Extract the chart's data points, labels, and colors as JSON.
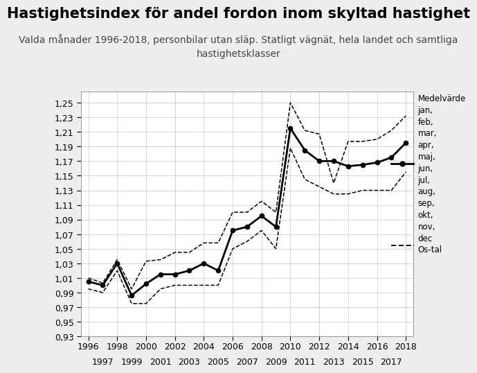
{
  "title": "Hastighetsindex för andel fordon inom skyltad hastighet",
  "subtitle": "Valda månader 1996-2018, personbilar utan släp. Statligt vägnät, hela landet och samtliga\nhastighetsklasser",
  "background_color": "#eeeeee",
  "plot_bg_color": "#ffffff",
  "main_line": {
    "x": [
      1996,
      1997,
      1998,
      1999,
      2000,
      2001,
      2002,
      2003,
      2004,
      2005,
      2006,
      2007,
      2008,
      2009,
      2010,
      2011,
      2012,
      2013,
      2014,
      2015,
      2016,
      2017,
      2018
    ],
    "y": [
      1.005,
      1.0,
      1.03,
      0.986,
      1.002,
      1.015,
      1.015,
      1.02,
      1.03,
      1.02,
      1.075,
      1.08,
      1.095,
      1.08,
      1.215,
      1.185,
      1.17,
      1.17,
      1.163,
      1.165,
      1.168,
      1.175,
      1.195
    ]
  },
  "upper_dashed": {
    "x": [
      1996,
      1997,
      1998,
      1999,
      2000,
      2001,
      2002,
      2003,
      2004,
      2005,
      2006,
      2007,
      2008,
      2009,
      2010,
      2011,
      2012,
      2013,
      2014,
      2015,
      2016,
      2017,
      2018
    ],
    "y": [
      1.01,
      1.003,
      1.035,
      0.995,
      1.033,
      1.035,
      1.045,
      1.045,
      1.058,
      1.058,
      1.1,
      1.1,
      1.115,
      1.1,
      1.25,
      1.212,
      1.207,
      1.14,
      1.197,
      1.197,
      1.2,
      1.212,
      1.232
    ]
  },
  "lower_dashed": {
    "x": [
      1996,
      1997,
      1998,
      1999,
      2000,
      2001,
      2002,
      2003,
      2004,
      2005,
      2006,
      2007,
      2008,
      2009,
      2010,
      2011,
      2012,
      2013,
      2014,
      2015,
      2016,
      2017,
      2018
    ],
    "y": [
      0.995,
      0.99,
      1.02,
      0.975,
      0.975,
      0.995,
      1.0,
      1.0,
      1.0,
      1.0,
      1.05,
      1.06,
      1.075,
      1.05,
      1.188,
      1.145,
      1.135,
      1.125,
      1.125,
      1.13,
      1.13,
      1.13,
      1.155
    ]
  },
  "ylim": [
    0.93,
    1.265
  ],
  "yticks": [
    0.93,
    0.95,
    0.97,
    0.99,
    1.01,
    1.03,
    1.05,
    1.07,
    1.09,
    1.11,
    1.13,
    1.15,
    1.17,
    1.19,
    1.21,
    1.23,
    1.25
  ],
  "xlim": [
    1995.5,
    2018.5
  ],
  "xticks_top": [
    1996,
    1998,
    2000,
    2002,
    2004,
    2006,
    2008,
    2010,
    2012,
    2014,
    2016,
    2018
  ],
  "xticks_bottom": [
    1997,
    1999,
    2001,
    2003,
    2005,
    2007,
    2009,
    2011,
    2013,
    2015,
    2017
  ],
  "line_color": "#000000",
  "title_fontsize": 15,
  "subtitle_fontsize": 10,
  "tick_fontsize": 9
}
